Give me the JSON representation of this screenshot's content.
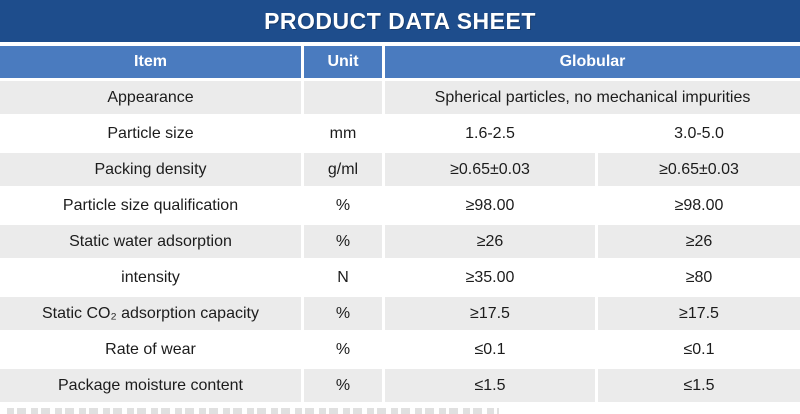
{
  "title": "PRODUCT DATA SHEET",
  "colors": {
    "title_bar": "#1e4d8c",
    "header_row": "#4a7bbf",
    "alt_row": "#ebebeb",
    "body_text": "#1c1c1c",
    "header_text": "#ffffff"
  },
  "table": {
    "headers": {
      "item": "Item",
      "unit": "Unit",
      "globular": "Globular"
    },
    "rows": [
      {
        "item": "Appearance",
        "unit": "",
        "values": [
          "Spherical particles, no mechanical impurities"
        ]
      },
      {
        "item": "Particle size",
        "unit": "mm",
        "values": [
          "1.6-2.5",
          "3.0-5.0"
        ]
      },
      {
        "item": "Packing density",
        "unit": "g/ml",
        "values": [
          "≥0.65±0.03",
          "≥0.65±0.03"
        ]
      },
      {
        "item": "Particle size qualification",
        "unit": "%",
        "values": [
          "≥98.00",
          "≥98.00"
        ]
      },
      {
        "item": "Static water adsorption",
        "unit": "%",
        "values": [
          "≥26",
          "≥26"
        ]
      },
      {
        "item": "intensity",
        "unit": "N",
        "values": [
          "≥35.00",
          "≥80"
        ]
      },
      {
        "item": "Static CO₂ adsorption capacity",
        "unit": "%",
        "values": [
          "≥17.5",
          "≥17.5"
        ]
      },
      {
        "item": "Rate of wear",
        "unit": "%",
        "values": [
          "≤0.1",
          "≤0.1"
        ]
      },
      {
        "item": "Package moisture content",
        "unit": "%",
        "values": [
          "≤1.5",
          "≤1.5"
        ]
      }
    ]
  }
}
